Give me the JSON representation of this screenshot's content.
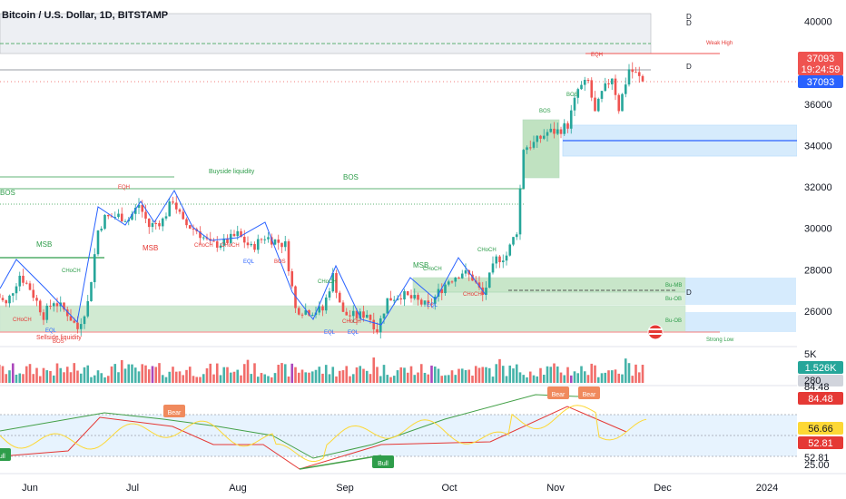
{
  "header": {
    "title": "Bitcoin / U.S. Dollar, 1D, BITSTAMP"
  },
  "colors": {
    "up": "#26a69a",
    "down": "#ef5350",
    "bull": "#2e9d4a",
    "bear": "#e53935",
    "blue": "#2962ff",
    "orange_tag": "#f08a5d",
    "purple": "#9c27b0"
  },
  "chart_data": [
    {
      "type": "candlestick",
      "title": "Bitcoin / U.S. Dollar, 1D, BITSTAMP",
      "x_ticks": [
        "Jun",
        "Jul",
        "Aug",
        "Sep",
        "Oct",
        "Nov",
        "Dec",
        "2024"
      ],
      "y_ticks": [
        26000,
        28000,
        30000,
        32000,
        34000,
        36000,
        40000
      ],
      "y_range": [
        24900,
        40600
      ],
      "last_price": "37093",
      "countdown": "19:24:59",
      "last_price_blue": "37093",
      "close_path": [
        [
          "2023-05-22",
          26850
        ],
        [
          "2023-05-25",
          26300
        ],
        [
          "2023-05-29",
          27750
        ],
        [
          "2023-06-01",
          27100
        ],
        [
          "2023-06-05",
          25800
        ],
        [
          "2023-06-08",
          26500
        ],
        [
          "2023-06-12",
          25900
        ],
        [
          "2023-06-15",
          25150
        ],
        [
          "2023-06-18",
          26400
        ],
        [
          "2023-06-21",
          29900
        ],
        [
          "2023-06-23",
          30500
        ],
        [
          "2023-06-27",
          30600
        ],
        [
          "2023-06-30",
          30450
        ],
        [
          "2023-07-03",
          31150
        ],
        [
          "2023-07-06",
          30100
        ],
        [
          "2023-07-10",
          30400
        ],
        [
          "2023-07-13",
          31400
        ],
        [
          "2023-07-16",
          30250
        ],
        [
          "2023-07-20",
          29900
        ],
        [
          "2023-07-24",
          29200
        ],
        [
          "2023-07-28",
          29300
        ],
        [
          "2023-08-01",
          29700
        ],
        [
          "2023-08-05",
          29050
        ],
        [
          "2023-08-09",
          29600
        ],
        [
          "2023-08-12",
          29400
        ],
        [
          "2023-08-15",
          29200
        ],
        [
          "2023-08-18",
          26100
        ],
        [
          "2023-08-22",
          26000
        ],
        [
          "2023-08-26",
          26050
        ],
        [
          "2023-08-29",
          27700
        ],
        [
          "2023-09-01",
          25850
        ],
        [
          "2023-09-05",
          25750
        ],
        [
          "2023-09-08",
          25900
        ],
        [
          "2023-09-11",
          25100
        ],
        [
          "2023-09-14",
          26550
        ],
        [
          "2023-09-18",
          26800
        ],
        [
          "2023-09-22",
          26550
        ],
        [
          "2023-09-26",
          26200
        ],
        [
          "2023-09-29",
          26900
        ],
        [
          "2023-10-02",
          27500
        ],
        [
          "2023-10-06",
          27900
        ],
        [
          "2023-10-09",
          27600
        ],
        [
          "2023-10-12",
          26750
        ],
        [
          "2023-10-16",
          28500
        ],
        [
          "2023-10-19",
          28700
        ],
        [
          "2023-10-22",
          29900
        ],
        [
          "2023-10-24",
          33900
        ],
        [
          "2023-10-27",
          34100
        ],
        [
          "2023-10-31",
          34650
        ],
        [
          "2023-11-03",
          34700
        ],
        [
          "2023-11-06",
          35000
        ],
        [
          "2023-11-09",
          36700
        ],
        [
          "2023-11-12",
          37100
        ],
        [
          "2023-11-14",
          35550
        ],
        [
          "2023-11-16",
          36500
        ],
        [
          "2023-11-19",
          37350
        ],
        [
          "2023-11-21",
          35800
        ],
        [
          "2023-11-24",
          37700
        ],
        [
          "2023-11-26",
          37450
        ],
        [
          "2023-11-28",
          37093
        ]
      ],
      "volume_axis": [
        "5K",
        "1.526K",
        "280"
      ],
      "oscillator": {
        "levels": [
          "84.48",
          "56.66",
          "52.81",
          "52.81",
          "25.00"
        ],
        "labels": [
          "Bear",
          "Bear",
          "Bear",
          "Bull",
          "Bull"
        ]
      },
      "annotations": {
        "msb_labels": [
          "MSB",
          "MSB",
          "MSB"
        ],
        "bos_labels": [
          "BOS",
          "BOS",
          "BOS",
          "BOS",
          "BOS",
          "BOS"
        ],
        "choch_labels": [
          "CHoCH",
          "CHoCH",
          "CHoCH",
          "CHoCH",
          "CHoCH",
          "CHoCH",
          "CHoCH",
          "CHoCH",
          "CHoCH"
        ],
        "eq_labels": [
          "EQH",
          "EQH",
          "EQL",
          "EQL",
          "EQL",
          "EQL",
          "EQL"
        ],
        "liquidity": [
          "Buyside liquidity",
          "Sellside liquidity"
        ],
        "obs": [
          "Bu-MB",
          "Bu-OB",
          "Bu-OB"
        ],
        "weak_high": "Weak High",
        "strong_low": "Strong Low",
        "d_marks": [
          "D",
          "D",
          "D",
          "D"
        ]
      }
    }
  ]
}
